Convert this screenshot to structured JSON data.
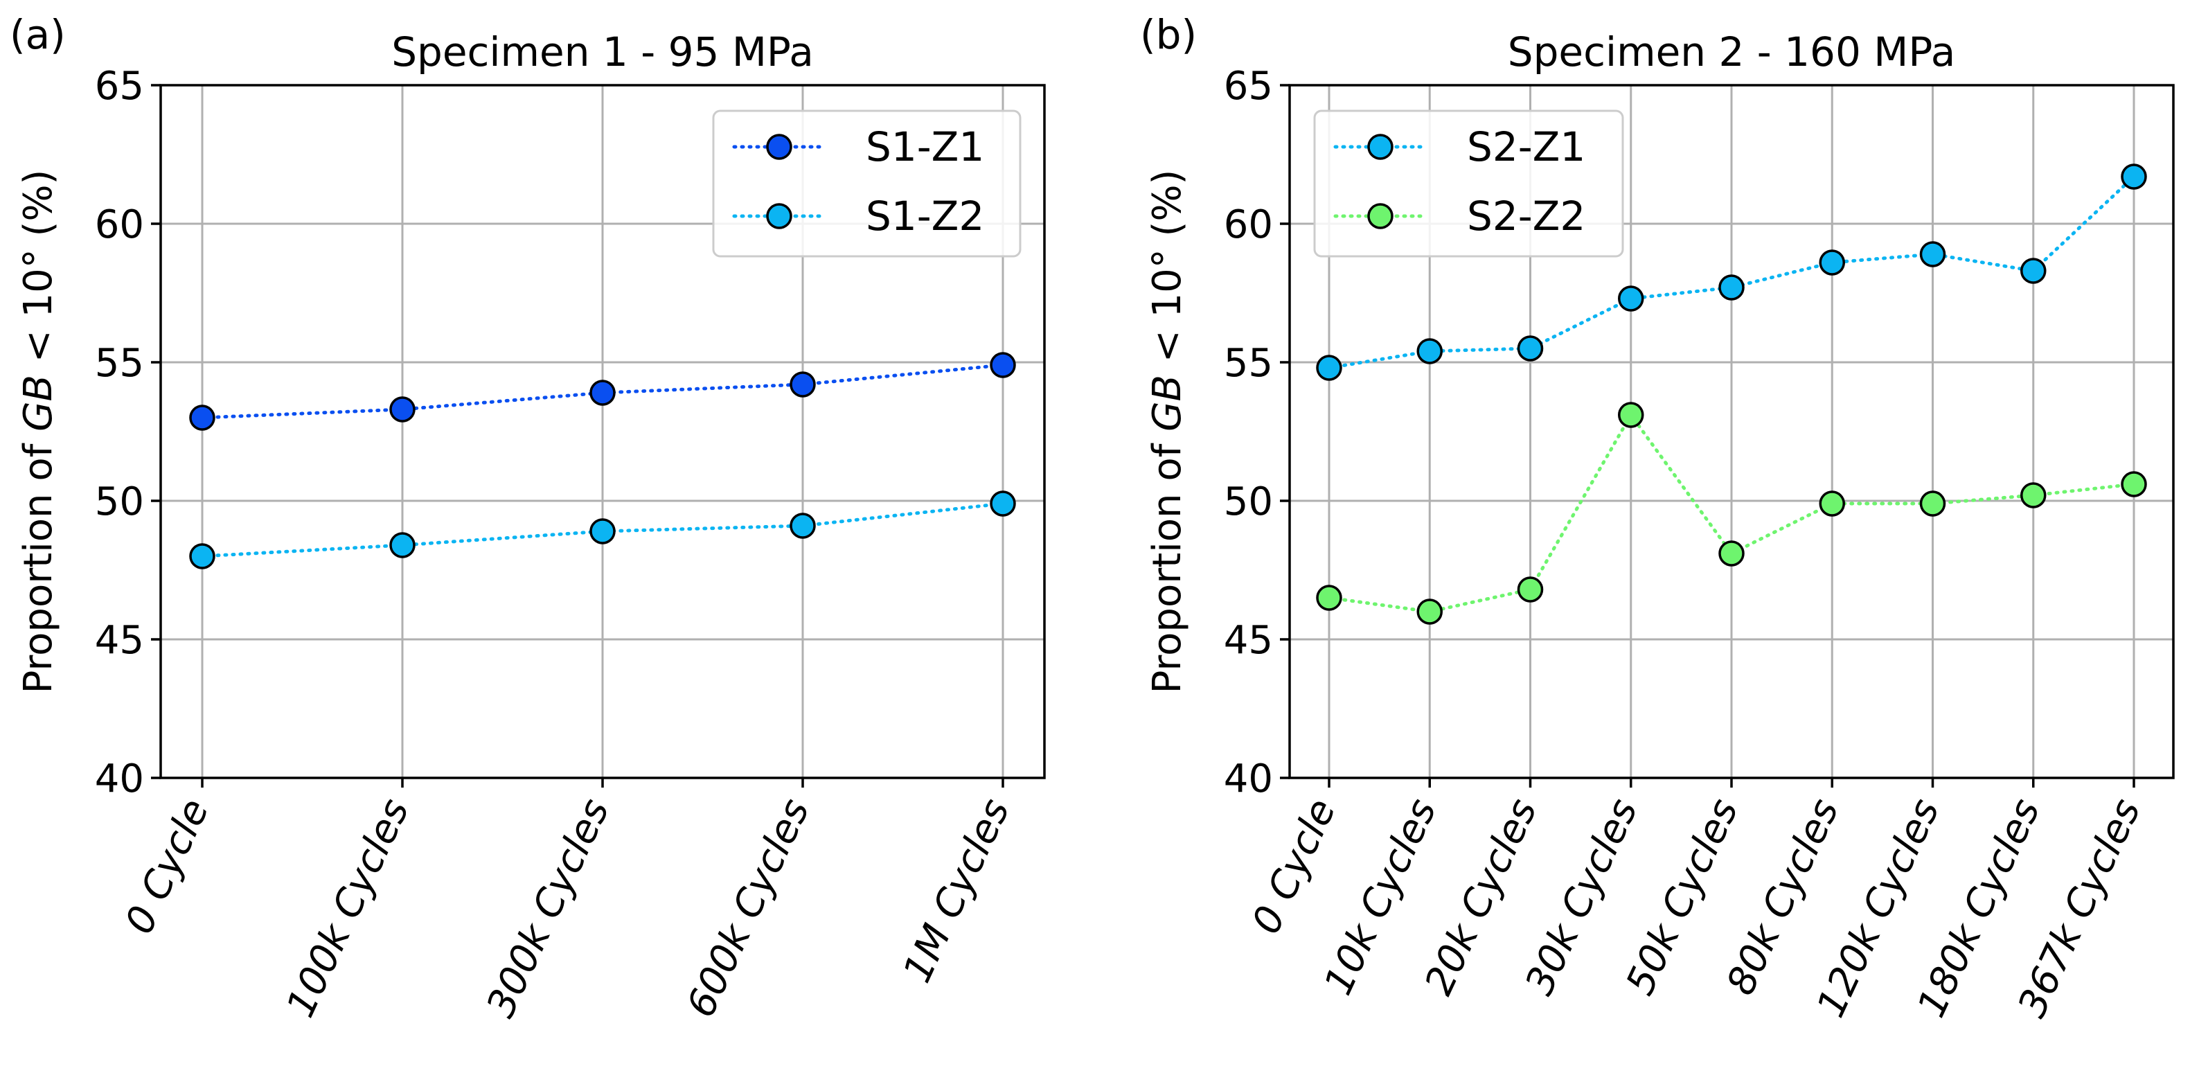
{
  "chart_data": [
    {
      "type": "line",
      "panel_label": "(a)",
      "title": "Specimen 1 - 95 MPa",
      "ylabel_prefix": "Proportion of ",
      "ylabel_italic": "GB",
      "ylabel_suffix": " < 10° (%)",
      "xlabel": "",
      "ylim": [
        40,
        65
      ],
      "yticks": [
        40,
        45,
        50,
        55,
        60,
        65
      ],
      "grid": true,
      "legend_position": "top-right",
      "categories": [
        "0 Cycle",
        "100k Cycles",
        "300k Cycles",
        "600k Cycles",
        "1M Cycles"
      ],
      "series": [
        {
          "name": "S1-Z1",
          "color": "#0a4ff0",
          "values": [
            53.0,
            53.3,
            53.9,
            54.2,
            54.9
          ]
        },
        {
          "name": "S1-Z2",
          "color": "#0bb4f2",
          "values": [
            48.0,
            48.4,
            48.9,
            49.1,
            49.9
          ]
        }
      ]
    },
    {
      "type": "line",
      "panel_label": "(b)",
      "title": "Specimen 2 - 160 MPa",
      "ylabel_prefix": "Proportion of ",
      "ylabel_italic": "GB",
      "ylabel_suffix": " < 10° (%)",
      "xlabel": "",
      "ylim": [
        40,
        65
      ],
      "yticks": [
        40,
        45,
        50,
        55,
        60,
        65
      ],
      "grid": true,
      "legend_position": "top-left",
      "categories": [
        "0 Cycle",
        "10k Cycles",
        "20k Cycles",
        "30k Cycles",
        "50k Cycles",
        "80k Cycles",
        "120k Cycles",
        "180k Cycles",
        "367k Cycles"
      ],
      "series": [
        {
          "name": "S2-Z1",
          "color": "#0bb4f2",
          "values": [
            54.8,
            55.4,
            55.5,
            57.3,
            57.7,
            58.6,
            58.9,
            58.3,
            61.7
          ]
        },
        {
          "name": "S2-Z2",
          "color": "#6ef46e",
          "values": [
            46.5,
            46.0,
            46.8,
            53.1,
            48.1,
            49.9,
            49.9,
            50.2,
            50.6
          ]
        }
      ]
    }
  ]
}
